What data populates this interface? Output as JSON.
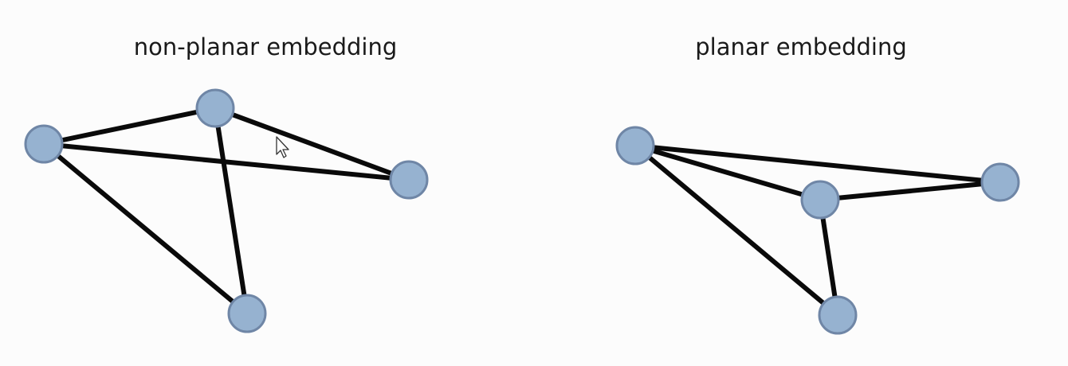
{
  "slide": {
    "left_title": "non-planar embedding",
    "right_title": "planar embedding"
  },
  "colors": {
    "background": "#fcfcfc",
    "node_fill": "#96b2d0",
    "node_stroke": "#6f86a6",
    "edge": "#0a0a0a",
    "cursor_fill": "#ffffff",
    "cursor_stroke": "#333333"
  },
  "cursor": {
    "icon": "mouse-pointer-icon"
  },
  "graphs": [
    {
      "name": "non-planar-embedding",
      "node_count": 4,
      "edges": [
        [
          "a",
          "b"
        ],
        [
          "a",
          "c"
        ],
        [
          "a",
          "d"
        ],
        [
          "b",
          "c"
        ],
        [
          "b",
          "d"
        ]
      ]
    },
    {
      "name": "planar-embedding",
      "node_count": 4,
      "edges": [
        [
          "a",
          "b"
        ],
        [
          "a",
          "c"
        ],
        [
          "a",
          "d"
        ],
        [
          "b",
          "c"
        ],
        [
          "b",
          "d"
        ]
      ]
    }
  ]
}
